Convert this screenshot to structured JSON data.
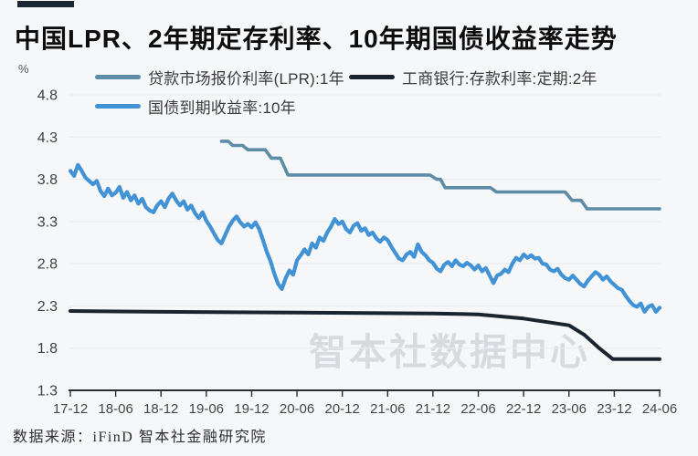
{
  "watermark": "智本社数据中心",
  "source": "数据来源：iFinD 智本社金融研究院",
  "chart_data": {
    "type": "line",
    "title": "中国LPR、2年期定存利率、10年期国债收益率走势",
    "xlabel": "",
    "ylabel": "%",
    "ylim": [
      1.3,
      4.8
    ],
    "y_ticks": [
      "4.8",
      "4.3",
      "3.8",
      "3.3",
      "2.8",
      "2.3",
      "1.8",
      "1.3"
    ],
    "grid": true,
    "legend_position": "top",
    "x_months_total": 78,
    "x_tick_labels": [
      "17-12",
      "18-06",
      "18-12",
      "19-06",
      "19-12",
      "20-06",
      "20-12",
      "21-06",
      "21-12",
      "22-06",
      "22-12",
      "23-06",
      "23-12",
      "24-06"
    ],
    "x_tick_month_step": 6,
    "series": [
      {
        "name": "贷款市场报价利率(LPR):1年",
        "color": "#5e8ba6",
        "stroke_width": 3.6,
        "points": [
          [
            20,
            4.25
          ],
          [
            20.9,
            4.25
          ],
          [
            21.5,
            4.2
          ],
          [
            22.8,
            4.2
          ],
          [
            23.5,
            4.15
          ],
          [
            25.8,
            4.15
          ],
          [
            26.6,
            4.05
          ],
          [
            27.8,
            4.05
          ],
          [
            28.8,
            3.85
          ],
          [
            47.6,
            3.85
          ],
          [
            48.5,
            3.8
          ],
          [
            49.0,
            3.8
          ],
          [
            49.6,
            3.7
          ],
          [
            55.6,
            3.7
          ],
          [
            56.4,
            3.65
          ],
          [
            65.5,
            3.65
          ],
          [
            66.4,
            3.55
          ],
          [
            67.6,
            3.55
          ],
          [
            68.4,
            3.45
          ],
          [
            78,
            3.45
          ]
        ]
      },
      {
        "name": "工商银行:存款利率:定期:2年",
        "color": "#1a242e",
        "stroke_width": 4,
        "points": [
          [
            0,
            2.24
          ],
          [
            12,
            2.23
          ],
          [
            30,
            2.22
          ],
          [
            48,
            2.21
          ],
          [
            54,
            2.2
          ],
          [
            60,
            2.15
          ],
          [
            66,
            2.07
          ],
          [
            68,
            1.96
          ],
          [
            70,
            1.8
          ],
          [
            71.8,
            1.67
          ],
          [
            78,
            1.67
          ]
        ]
      },
      {
        "name": "国债到期收益率:10年",
        "color": "#4292d6",
        "stroke_width": 4.2,
        "points": [
          [
            0,
            3.9
          ],
          [
            0.5,
            3.84
          ],
          [
            1,
            3.97
          ],
          [
            1.5,
            3.9
          ],
          [
            2,
            3.82
          ],
          [
            2.5,
            3.78
          ],
          [
            3,
            3.74
          ],
          [
            3.5,
            3.78
          ],
          [
            4,
            3.66
          ],
          [
            4.5,
            3.6
          ],
          [
            5,
            3.69
          ],
          [
            5.5,
            3.61
          ],
          [
            6,
            3.64
          ],
          [
            6.5,
            3.71
          ],
          [
            7,
            3.58
          ],
          [
            7.5,
            3.65
          ],
          [
            8,
            3.55
          ],
          [
            8.5,
            3.61
          ],
          [
            9,
            3.51
          ],
          [
            9.5,
            3.57
          ],
          [
            10,
            3.47
          ],
          [
            10.5,
            3.43
          ],
          [
            11,
            3.41
          ],
          [
            11.5,
            3.49
          ],
          [
            12,
            3.54
          ],
          [
            12.5,
            3.47
          ],
          [
            13,
            3.57
          ],
          [
            13.5,
            3.63
          ],
          [
            14,
            3.55
          ],
          [
            14.5,
            3.49
          ],
          [
            15,
            3.54
          ],
          [
            15.5,
            3.44
          ],
          [
            16,
            3.49
          ],
          [
            16.5,
            3.4
          ],
          [
            17,
            3.34
          ],
          [
            17.5,
            3.41
          ],
          [
            18,
            3.31
          ],
          [
            18.5,
            3.24
          ],
          [
            19,
            3.16
          ],
          [
            19.5,
            3.08
          ],
          [
            20,
            3.04
          ],
          [
            20.5,
            3.14
          ],
          [
            21,
            3.24
          ],
          [
            21.5,
            3.31
          ],
          [
            22,
            3.36
          ],
          [
            22.5,
            3.29
          ],
          [
            23,
            3.24
          ],
          [
            23.5,
            3.27
          ],
          [
            24,
            3.23
          ],
          [
            24.5,
            3.29
          ],
          [
            25,
            3.21
          ],
          [
            25.5,
            3.08
          ],
          [
            26,
            2.94
          ],
          [
            26.5,
            2.83
          ],
          [
            27,
            2.68
          ],
          [
            27.5,
            2.56
          ],
          [
            28,
            2.5
          ],
          [
            28.5,
            2.63
          ],
          [
            29,
            2.72
          ],
          [
            29.5,
            2.67
          ],
          [
            30,
            2.84
          ],
          [
            30.5,
            2.9
          ],
          [
            31,
            2.97
          ],
          [
            31.5,
            2.91
          ],
          [
            32,
            3.04
          ],
          [
            32.5,
            2.99
          ],
          [
            33,
            3.11
          ],
          [
            33.5,
            3.07
          ],
          [
            34,
            3.17
          ],
          [
            34.5,
            3.24
          ],
          [
            35,
            3.33
          ],
          [
            35.5,
            3.27
          ],
          [
            36,
            3.3
          ],
          [
            36.5,
            3.21
          ],
          [
            37,
            3.17
          ],
          [
            37.5,
            3.25
          ],
          [
            38,
            3.28
          ],
          [
            38.5,
            3.19
          ],
          [
            39,
            3.22
          ],
          [
            39.5,
            3.14
          ],
          [
            40,
            3.17
          ],
          [
            40.5,
            3.1
          ],
          [
            41,
            3.06
          ],
          [
            41.5,
            3.11
          ],
          [
            42,
            3.08
          ],
          [
            42.5,
            3.0
          ],
          [
            43,
            2.93
          ],
          [
            43.5,
            2.86
          ],
          [
            44,
            2.84
          ],
          [
            44.5,
            2.91
          ],
          [
            45,
            2.94
          ],
          [
            45.5,
            2.88
          ],
          [
            46,
            3.03
          ],
          [
            46.5,
            2.94
          ],
          [
            47,
            2.9
          ],
          [
            47.5,
            2.84
          ],
          [
            48,
            2.81
          ],
          [
            48.5,
            2.74
          ],
          [
            49,
            2.71
          ],
          [
            49.5,
            2.79
          ],
          [
            50,
            2.82
          ],
          [
            50.5,
            2.77
          ],
          [
            51,
            2.84
          ],
          [
            51.5,
            2.79
          ],
          [
            52,
            2.77
          ],
          [
            52.5,
            2.81
          ],
          [
            53,
            2.78
          ],
          [
            53.5,
            2.73
          ],
          [
            54,
            2.78
          ],
          [
            54.5,
            2.71
          ],
          [
            55,
            2.75
          ],
          [
            55.5,
            2.66
          ],
          [
            56,
            2.57
          ],
          [
            56.5,
            2.66
          ],
          [
            57,
            2.68
          ],
          [
            57.5,
            2.73
          ],
          [
            58,
            2.7
          ],
          [
            58.5,
            2.8
          ],
          [
            59,
            2.87
          ],
          [
            59.5,
            2.84
          ],
          [
            60,
            2.91
          ],
          [
            60.5,
            2.87
          ],
          [
            61,
            2.9
          ],
          [
            61.5,
            2.86
          ],
          [
            62,
            2.87
          ],
          [
            62.5,
            2.8
          ],
          [
            63,
            2.79
          ],
          [
            63.5,
            2.73
          ],
          [
            64,
            2.71
          ],
          [
            64.5,
            2.74
          ],
          [
            65,
            2.67
          ],
          [
            65.5,
            2.63
          ],
          [
            66,
            2.61
          ],
          [
            66.5,
            2.66
          ],
          [
            67,
            2.61
          ],
          [
            67.5,
            2.56
          ],
          [
            68,
            2.53
          ],
          [
            68.5,
            2.6
          ],
          [
            69,
            2.65
          ],
          [
            69.5,
            2.7
          ],
          [
            70,
            2.67
          ],
          [
            70.5,
            2.61
          ],
          [
            71,
            2.65
          ],
          [
            71.5,
            2.59
          ],
          [
            72,
            2.55
          ],
          [
            72.5,
            2.51
          ],
          [
            73,
            2.49
          ],
          [
            73.5,
            2.42
          ],
          [
            74,
            2.36
          ],
          [
            74.5,
            2.31
          ],
          [
            75,
            2.29
          ],
          [
            75.5,
            2.33
          ],
          [
            76,
            2.23
          ],
          [
            76.5,
            2.29
          ],
          [
            77,
            2.31
          ],
          [
            77.5,
            2.23
          ],
          [
            78,
            2.28
          ]
        ]
      }
    ]
  }
}
